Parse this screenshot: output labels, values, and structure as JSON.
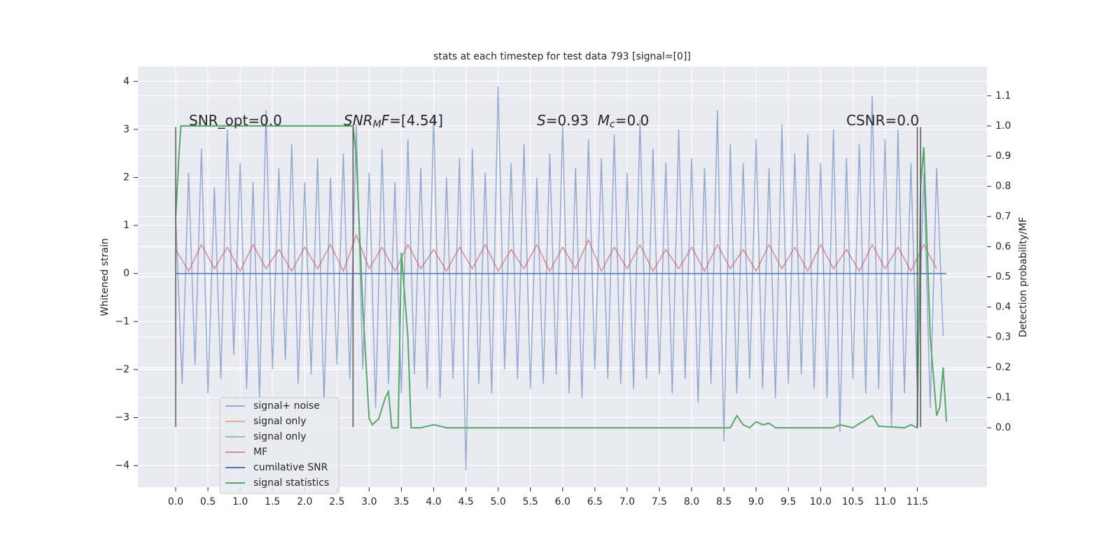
{
  "chart_data": {
    "type": "line",
    "title": "stats at each timestep for test data 793 [signal=[0]]",
    "ylabel": "Whitened strain",
    "y2label": "Detection probability/MF",
    "background": "#eaeaf2",
    "grid": true,
    "legend": "lower left",
    "xlim": [
      -0.586,
      12.58
    ],
    "ylim": [
      -4.45,
      4.31
    ],
    "y2lim": [
      -0.197,
      1.197
    ],
    "xticks": [
      {
        "value": 0,
        "label": "0.0"
      },
      0.5,
      {
        "value": 1,
        "label": "1.0"
      },
      1.5,
      {
        "value": 2,
        "label": "2.0"
      },
      2.5,
      {
        "value": 3,
        "label": "3.0"
      },
      3.5,
      {
        "value": 4,
        "label": "4.0"
      },
      4.5,
      {
        "value": 5,
        "label": "5.0"
      },
      5.5,
      {
        "value": 6,
        "label": "6.0"
      },
      6.5,
      {
        "value": 7,
        "label": "7.0"
      },
      7.5,
      {
        "value": 8,
        "label": "8.0"
      },
      8.5,
      {
        "value": 9,
        "label": "9.0"
      },
      9.5,
      {
        "value": 10,
        "label": "10.0"
      },
      10.5,
      {
        "value": 11,
        "label": "11.0"
      },
      11.5
    ],
    "yticks": [
      {
        "value": -4,
        "label": "−4"
      },
      {
        "value": -3,
        "label": "−3"
      },
      {
        "value": -2,
        "label": "−2"
      },
      {
        "value": -1,
        "label": "−1"
      },
      0,
      1,
      2,
      3,
      4
    ],
    "y2ticks": [
      {
        "value": 0,
        "label": "0.0"
      },
      0.1,
      0.2,
      0.3,
      0.4,
      0.5,
      0.6,
      0.7,
      0.8,
      0.9,
      {
        "value": 1,
        "label": "1.0"
      },
      1.1
    ],
    "series": [
      {
        "name": "signal+ noise",
        "color": "#4c72b0",
        "opacity": 0.55,
        "x": [
          0,
          0.1,
          0.2,
          0.3,
          0.4,
          0.5,
          0.6,
          0.7,
          0.8,
          0.9,
          1,
          1.1,
          1.2,
          1.3,
          1.4,
          1.5,
          1.6,
          1.7,
          1.8,
          1.9,
          2,
          2.1,
          2.2,
          2.3,
          2.4,
          2.5,
          2.6,
          2.7,
          2.8,
          2.9,
          3,
          3.1,
          3.2,
          3.3,
          3.4,
          3.5,
          3.6,
          3.7,
          3.8,
          3.9,
          4,
          4.1,
          4.2,
          4.3,
          4.4,
          4.5,
          4.6,
          4.7,
          4.8,
          4.9,
          5,
          5.1,
          5.2,
          5.3,
          5.4,
          5.5,
          5.6,
          5.7,
          5.8,
          5.9,
          6,
          6.1,
          6.2,
          6.3,
          6.4,
          6.5,
          6.6,
          6.7,
          6.8,
          6.9,
          7,
          7.1,
          7.2,
          7.3,
          7.4,
          7.5,
          7.6,
          7.7,
          7.8,
          7.9,
          8,
          8.1,
          8.2,
          8.3,
          8.4,
          8.5,
          8.6,
          8.7,
          8.8,
          8.9,
          9,
          9.1,
          9.2,
          9.3,
          9.4,
          9.5,
          9.6,
          9.7,
          9.8,
          9.9,
          10,
          10.1,
          10.2,
          10.3,
          10.4,
          10.5,
          10.6,
          10.7,
          10.8,
          10.9,
          11,
          11.1,
          11.2,
          11.3,
          11.4,
          11.5,
          11.6,
          11.7,
          11.8,
          11.9
        ],
        "values": [
          1.2,
          -2.3,
          2.1,
          -1.9,
          2.6,
          -2.5,
          1.8,
          -2.2,
          3.0,
          -1.7,
          2.3,
          -2.4,
          1.9,
          -2.6,
          3.4,
          -2.0,
          2.2,
          -1.8,
          2.7,
          -2.3,
          1.9,
          -2.1,
          2.4,
          -2.7,
          2.0,
          -1.9,
          2.5,
          -2.2,
          3.1,
          -2.0,
          2.1,
          -2.8,
          2.6,
          -2.3,
          1.9,
          -2.5,
          2.8,
          -2.1,
          2.2,
          -2.4,
          3.3,
          -2.6,
          2.0,
          -2.2,
          2.4,
          -4.1,
          2.6,
          -2.3,
          2.1,
          -2.5,
          3.9,
          -2.0,
          2.3,
          -2.2,
          2.7,
          -2.4,
          2.0,
          -2.3,
          2.5,
          -2.1,
          3.1,
          -2.5,
          2.2,
          -2.6,
          2.8,
          -2.0,
          2.4,
          -2.2,
          2.9,
          -2.3,
          2.1,
          -2.4,
          3.2,
          -2.2,
          2.6,
          -2.1,
          2.3,
          -2.5,
          3.0,
          -2.2,
          2.4,
          -2.7,
          2.2,
          -2.3,
          3.4,
          -3.5,
          2.7,
          -2.5,
          2.3,
          -2.2,
          2.8,
          -2.4,
          2.2,
          -2.6,
          3.1,
          -2.3,
          2.5,
          -2.1,
          2.9,
          -2.4,
          2.3,
          -2.6,
          3.0,
          -3.3,
          2.4,
          -2.2,
          2.7,
          -2.5,
          3.7,
          -2.4,
          2.8,
          -3.2,
          3.0,
          -2.5,
          2.3,
          -2.4,
          2.1,
          -2.8,
          2.2,
          -1.3
        ]
      },
      {
        "name": "signal only",
        "color": "#dd8452",
        "opacity": 0.6,
        "x": [
          0,
          11.95
        ],
        "values": [
          0,
          0
        ]
      },
      {
        "name": "signal only",
        "color": "#55a868",
        "opacity": 0.6,
        "x": [
          0,
          11.95
        ],
        "values": [
          0,
          0
        ]
      },
      {
        "name": "MF",
        "color": "#c44e52",
        "opacity": 0.6,
        "x": [
          0,
          0.2,
          0.4,
          0.6,
          0.8,
          1,
          1.2,
          1.4,
          1.6,
          1.8,
          2,
          2.2,
          2.4,
          2.6,
          2.8,
          3,
          3.2,
          3.4,
          3.6,
          3.8,
          4,
          4.2,
          4.4,
          4.6,
          4.8,
          5,
          5.2,
          5.4,
          5.6,
          5.8,
          6,
          6.2,
          6.4,
          6.6,
          6.8,
          7,
          7.2,
          7.4,
          7.6,
          7.8,
          8,
          8.2,
          8.4,
          8.6,
          8.8,
          9,
          9.2,
          9.4,
          9.6,
          9.8,
          10,
          10.2,
          10.4,
          10.6,
          10.8,
          11,
          11.2,
          11.4,
          11.6,
          11.8
        ],
        "values": [
          0.5,
          0.05,
          0.6,
          0.1,
          0.55,
          0.05,
          0.6,
          0.1,
          0.5,
          0.05,
          0.55,
          0.1,
          0.6,
          0.05,
          0.8,
          0.1,
          0.55,
          0.05,
          0.6,
          0.1,
          0.5,
          0.05,
          0.55,
          0.1,
          0.6,
          0.05,
          0.5,
          0.1,
          0.6,
          0.05,
          0.55,
          0.1,
          0.7,
          0.05,
          0.55,
          0.1,
          0.6,
          0.05,
          0.5,
          0.1,
          0.55,
          0.05,
          0.6,
          0.1,
          0.5,
          0.05,
          0.6,
          0.1,
          0.55,
          0.05,
          0.6,
          0.1,
          0.5,
          0.05,
          0.6,
          0.1,
          0.55,
          0.05,
          0.6,
          0.1
        ]
      },
      {
        "name": "cumilative SNR",
        "color": "#4c72b0",
        "opacity": 1,
        "x": [
          0,
          11.95
        ],
        "values": [
          0,
          0
        ]
      },
      {
        "name": "signal statistics",
        "color": "#55a868",
        "opacity": 1,
        "axis": "y2",
        "x": [
          0,
          0.05,
          0.08,
          0.2,
          1,
          2,
          2.75,
          2.8,
          2.9,
          3.0,
          3.05,
          3.15,
          3.25,
          3.3,
          3.35,
          3.45,
          3.5,
          3.6,
          3.65,
          3.8,
          4.0,
          4.2,
          8.6,
          8.7,
          8.8,
          8.9,
          9.0,
          9.1,
          9.2,
          9.3,
          10.2,
          10.3,
          10.5,
          10.8,
          10.9,
          11.3,
          11.4,
          11.5,
          11.55,
          11.6,
          11.7,
          11.8,
          11.85,
          11.9,
          11.95
        ],
        "values": [
          0.7,
          0.9,
          1.0,
          1.0,
          1.0,
          1.0,
          1.0,
          0.9,
          0.4,
          0.03,
          0.01,
          0.03,
          0.1,
          0.12,
          0.0,
          0.0,
          0.58,
          0.3,
          0.0,
          0.0,
          0.01,
          0.0,
          0.0,
          0.04,
          0.01,
          0.0,
          0.02,
          0.01,
          0.015,
          0.0,
          0.0,
          0.01,
          0.0,
          0.04,
          0.005,
          0.0,
          0.01,
          0.0,
          0.8,
          0.93,
          0.3,
          0.04,
          0.07,
          0.2,
          0.02
        ]
      }
    ],
    "vlines": {
      "color": "#555555",
      "x": [
        0,
        2.75,
        11.5,
        11.55
      ],
      "ymin": -3.2,
      "ymax": 3.05
    },
    "annotations": [
      [
        {
          "text": "SNR_opt=0.0",
          "style": "normal"
        }
      ],
      [
        {
          "text": "SNR",
          "style": "italic"
        },
        {
          "text": "M",
          "style": "sub"
        },
        {
          "text": "F",
          "style": "italic"
        },
        {
          "text": "=[4.54]",
          "style": "normal"
        }
      ],
      [
        {
          "text": "S",
          "style": "italic"
        },
        {
          "text": "=0.93  ",
          "style": "normal"
        },
        {
          "text": "M",
          "style": "italic"
        },
        {
          "text": "c",
          "style": "sub"
        },
        {
          "text": "=0.0",
          "style": "normal"
        }
      ],
      [
        {
          "text": "CSNR=0.0",
          "style": "normal"
        }
      ]
    ]
  }
}
